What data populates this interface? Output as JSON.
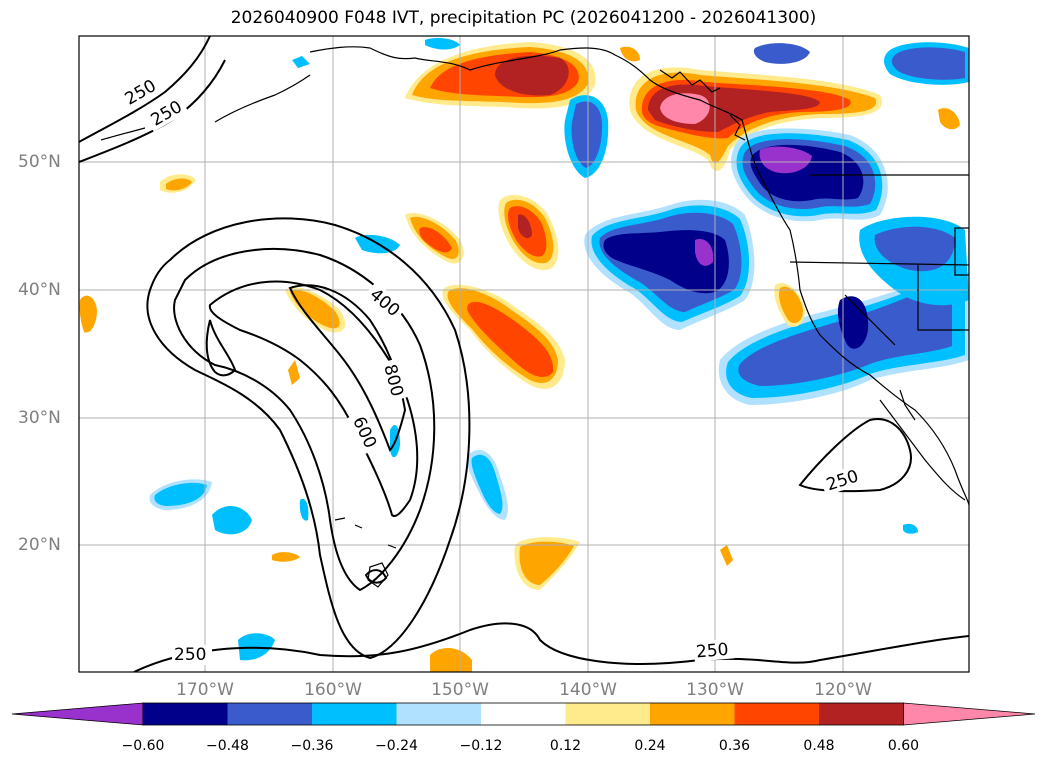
{
  "title": "2026040900 F048 IVT, precipitation PC (2026041200 - 2026041300)",
  "lat_labels": [
    "50°N",
    "40°N",
    "30°N",
    "20°N"
  ],
  "lon_labels": [
    "170°W",
    "160°W",
    "150°W",
    "140°W",
    "130°W",
    "120°W"
  ],
  "contour_labels": [
    "250",
    "250",
    "400",
    "800",
    "600",
    "250",
    "250",
    "250"
  ],
  "colorbar": {
    "colors": [
      "#9932cc",
      "#00008b",
      "#3a5bcc",
      "#00bfff",
      "#b0e2ff",
      "#ffffff",
      "#ffea8c",
      "#ffa500",
      "#ff4500",
      "#b22222",
      "#ff88aa"
    ],
    "ticks": [
      "−0.60",
      "−0.48",
      "−0.36",
      "−0.24",
      "−0.12",
      "0.12",
      "0.24",
      "0.36",
      "0.48",
      "0.60"
    ]
  }
}
